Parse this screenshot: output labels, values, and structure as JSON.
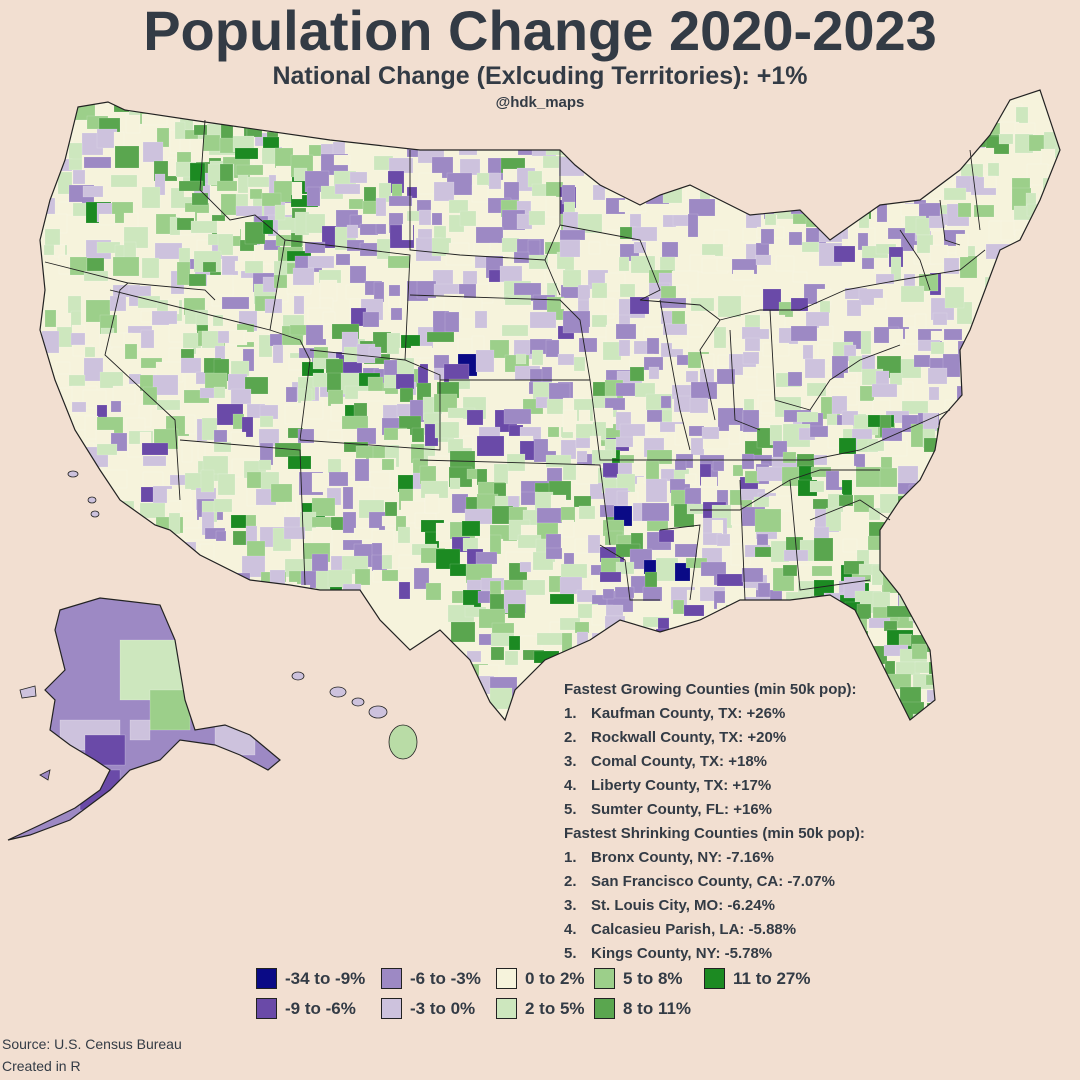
{
  "title": "Population Change 2020-2023",
  "subtitle": "National Change (Exlcuding Territories): +1%",
  "credit": "@hdk_maps",
  "colors": {
    "background": "#f2dfd1",
    "bin_colors": [
      "#0a0a86",
      "#6a4aa8",
      "#9d89c4",
      "#cdc2dd",
      "#f6f3dc",
      "#cde7be",
      "#9ccf8a",
      "#5aa64f",
      "#1c8a22"
    ]
  },
  "legend": {
    "items": [
      {
        "label": "-34 to -9%",
        "color": "#0a0a86"
      },
      {
        "label": "-9 to -6%",
        "color": "#6a4aa8"
      },
      {
        "label": "-6 to -3%",
        "color": "#9d89c4"
      },
      {
        "label": "-3 to 0%",
        "color": "#cdc2dd"
      },
      {
        "label": "0 to 2%",
        "color": "#f6f3dc"
      },
      {
        "label": "2 to 5%",
        "color": "#cde7be"
      },
      {
        "label": "5 to 8%",
        "color": "#9ccf8a"
      },
      {
        "label": "8 to 11%",
        "color": "#5aa64f"
      },
      {
        "label": "11 to 27%",
        "color": "#1c8a22"
      }
    ]
  },
  "growing": {
    "heading": "Fastest Growing Counties (min 50k pop):",
    "items": [
      {
        "num": "1.",
        "text": "Kaufman County, TX: +26%"
      },
      {
        "num": "2.",
        "text": "Rockwall County, TX: +20%"
      },
      {
        "num": "3.",
        "text": "Comal County, TX: +18%"
      },
      {
        "num": "4.",
        "text": "Liberty County, TX: +17%"
      },
      {
        "num": "5.",
        "text": "Sumter County, FL: +16%"
      }
    ]
  },
  "shrinking": {
    "heading": "Fastest Shrinking Counties (min 50k pop):",
    "items": [
      {
        "num": "1.",
        "text": "Bronx County, NY: -7.16%"
      },
      {
        "num": "2.",
        "text": "San Francisco County, CA: -7.07%"
      },
      {
        "num": "3.",
        "text": "St. Louis City, MO: -6.24%"
      },
      {
        "num": "4.",
        "text": "Calcasieu Parish, LA: -5.88%"
      },
      {
        "num": "5.",
        "text": "Kings County, NY: -5.78%"
      }
    ]
  },
  "footer": {
    "source": "Source: U.S. Census Bureau",
    "created": "Created in R"
  }
}
